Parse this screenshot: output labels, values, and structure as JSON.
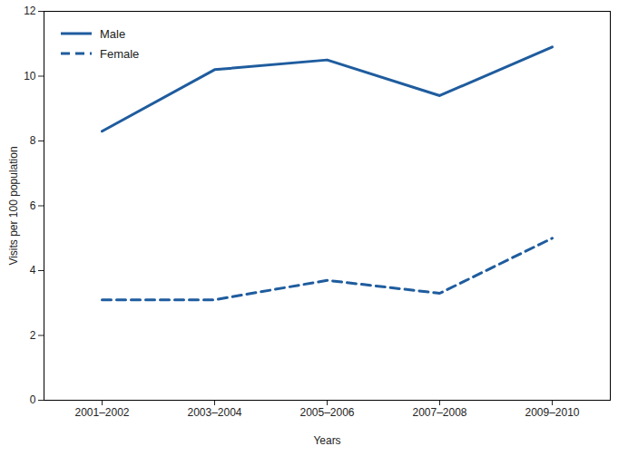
{
  "chart_data": {
    "type": "line",
    "categories": [
      "2001–2002",
      "2003–2004",
      "2005–2006",
      "2007–2008",
      "2009–2010"
    ],
    "series": [
      {
        "name": "Male",
        "color": "#1f5c9e",
        "line_style": "solid",
        "values": [
          8.3,
          10.2,
          10.5,
          9.4,
          10.9
        ]
      },
      {
        "name": "Female",
        "color": "#1f5c9e",
        "line_style": "dashed",
        "values": [
          3.1,
          3.1,
          3.7,
          3.3,
          5.0
        ]
      }
    ],
    "x_label": "Years",
    "y_label": "Visits per 100 population",
    "ylim": [
      0,
      12
    ],
    "yticks": [
      0,
      2,
      4,
      6,
      8,
      10,
      12
    ],
    "legend": "top-left",
    "grid": false
  }
}
